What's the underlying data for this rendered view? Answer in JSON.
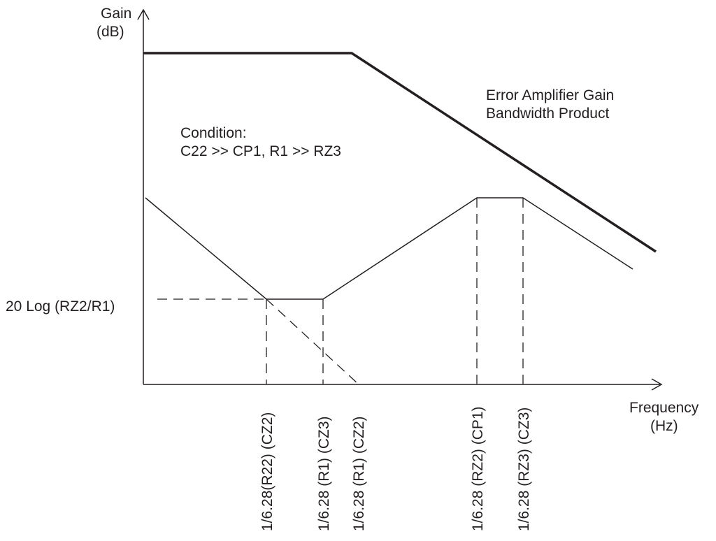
{
  "axes": {
    "y_label_line1": "Gain",
    "y_label_line2": "(dB)",
    "x_label_line1": "Frequency",
    "x_label_line2": "(Hz)"
  },
  "annotations": {
    "gbp_line1": "Error Amplifier Gain",
    "gbp_line2": "Bandwidth Product",
    "condition_line1": "Condition:",
    "condition_line2": "C22 >> CP1, R1 >> RZ3",
    "gain_level": "20 Log (RZ2/R1)"
  },
  "frequency_ticks": [
    "1/6.28(R22) (CZ2)",
    "1/6.28 (R1) (CZ3)",
    "1/6.28 (R1) (CZ2)",
    "1/6.28 (RZ2) (CP1)",
    "1/6.28 (RZ3) (CZ3)"
  ]
}
